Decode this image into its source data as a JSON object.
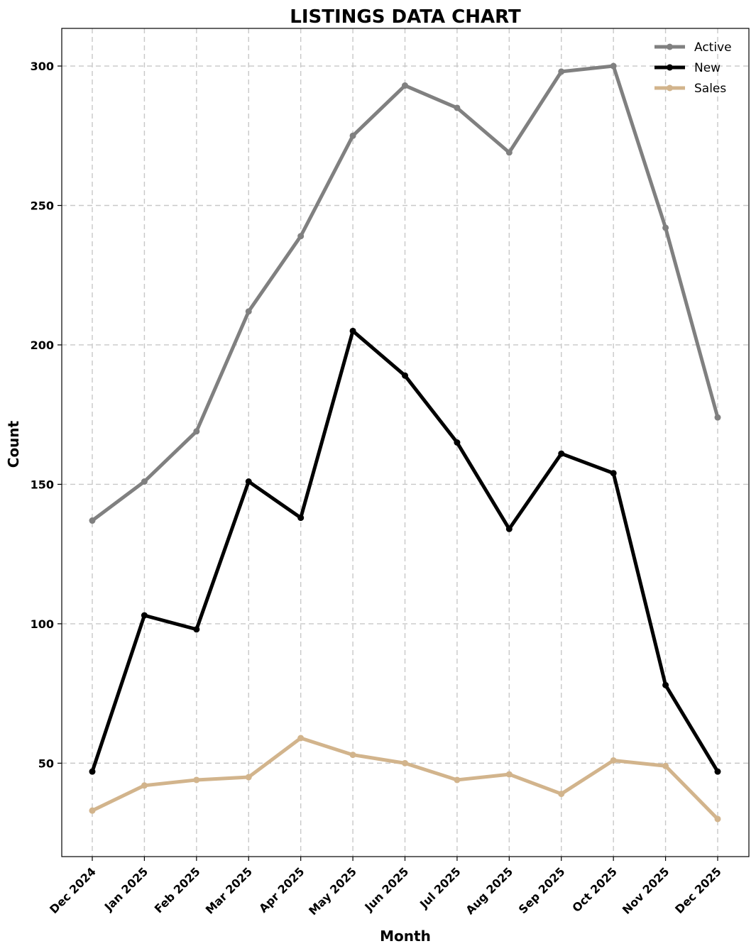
{
  "chart_data": {
    "type": "line",
    "title": "LISTINGS DATA CHART",
    "xlabel": "Month",
    "ylabel": "Count",
    "categories": [
      "Dec 2024",
      "Jan 2025",
      "Feb 2025",
      "Mar 2025",
      "Apr 2025",
      "May 2025",
      "Jun 2025",
      "Jul 2025",
      "Aug 2025",
      "Sep 2025",
      "Oct 2025",
      "Nov 2025",
      "Dec 2025"
    ],
    "yticks": [
      50,
      100,
      150,
      200,
      250,
      300
    ],
    "ylim": [
      16.5,
      313.5
    ],
    "grid": true,
    "legend_position": "top-right",
    "series": [
      {
        "name": "Active",
        "color": "#808080",
        "values": [
          137,
          151,
          169,
          212,
          239,
          275,
          293,
          285,
          269,
          298,
          300,
          242,
          174
        ]
      },
      {
        "name": "New",
        "color": "#000000",
        "values": [
          47,
          103,
          98,
          151,
          138,
          205,
          189,
          165,
          134,
          161,
          154,
          78,
          47
        ]
      },
      {
        "name": "Sales",
        "color": "#d2b48c",
        "values": [
          33,
          42,
          44,
          45,
          59,
          53,
          50,
          44,
          46,
          39,
          51,
          49,
          30
        ]
      }
    ]
  }
}
